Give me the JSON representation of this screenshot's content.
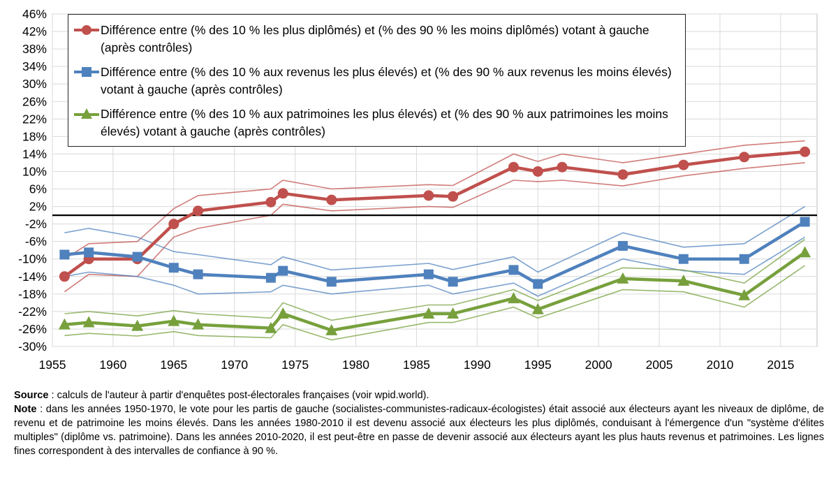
{
  "chart_data": {
    "type": "line",
    "y_ticks": [
      "46%",
      "42%",
      "38%",
      "34%",
      "30%",
      "26%",
      "22%",
      "18%",
      "14%",
      "10%",
      "6%",
      "2%",
      "-2%",
      "-6%",
      "-10%",
      "-14%",
      "-18%",
      "-22%",
      "-26%",
      "-30%"
    ],
    "x_ticks": [
      "1955",
      "1960",
      "1965",
      "1970",
      "1975",
      "1980",
      "1985",
      "1990",
      "1995",
      "2000",
      "2005",
      "2010",
      "2015"
    ],
    "xlim": [
      1955,
      2018
    ],
    "ylim": [
      -30,
      46
    ],
    "grid": true,
    "reference_line": 0,
    "legend_position": "top-left",
    "series": [
      {
        "name": "Différence entre (% des 10 % les plus diplômés) et (% des 90 % les moins diplômés) votant à gauche (après contrôles)",
        "color": "#c0504d",
        "marker": "circle",
        "x": [
          1956,
          1958,
          1962,
          1965,
          1967,
          1973,
          1974,
          1978,
          1986,
          1988,
          1993,
          1995,
          1997,
          2002,
          2007,
          2012,
          2017
        ],
        "values": [
          -14,
          -10,
          -10,
          -2,
          1,
          3,
          5,
          3.5,
          4.5,
          4.3,
          11,
          10,
          11,
          9.3,
          11.5,
          13.3,
          14.5
        ],
        "upper": [
          -10,
          -6.5,
          -6,
          1.5,
          4.5,
          6,
          8,
          6,
          7,
          6.8,
          14,
          12.3,
          14,
          12,
          14,
          16,
          17
        ],
        "lower": [
          -17.5,
          -13.5,
          -14,
          -5,
          -3,
          0,
          2.5,
          1,
          2,
          1.8,
          8,
          7.7,
          8,
          6.7,
          9,
          10.7,
          12
        ]
      },
      {
        "name": "Différence entre (% des 10 % aux revenus les plus élevés) et (% des 90 % aux revenus les moins élevés) votant à gauche (après contrôles)",
        "color": "#4f81bd",
        "marker": "square",
        "x": [
          1956,
          1958,
          1962,
          1965,
          1967,
          1973,
          1974,
          1978,
          1986,
          1988,
          1993,
          1995,
          2002,
          2007,
          2012,
          2017
        ],
        "values": [
          -9,
          -8.5,
          -9.5,
          -12,
          -13.5,
          -14.3,
          -12.7,
          -15.2,
          -13.5,
          -15.2,
          -12.5,
          -15.7,
          -7,
          -10,
          -10,
          -1.5
        ],
        "upper": [
          -4,
          -3,
          -5,
          -8.3,
          -9,
          -11.3,
          -9.5,
          -12.5,
          -11,
          -12.4,
          -9.5,
          -13,
          -4,
          -7.3,
          -6.5,
          2
        ],
        "lower": [
          -14,
          -13,
          -14,
          -16,
          -18,
          -17.5,
          -16,
          -18,
          -16,
          -18,
          -15.5,
          -18.5,
          -10,
          -12.7,
          -13.5,
          -5
        ]
      },
      {
        "name": "Différence entre (% des 10 % aux patrimoines les plus élevés) et (% des 90 % aux patrimoines les moins élevés) votant à gauche (après contrôles)",
        "color": "#77a03c",
        "marker": "triangle",
        "x": [
          1956,
          1958,
          1962,
          1965,
          1967,
          1973,
          1974,
          1978,
          1986,
          1988,
          1993,
          1995,
          2002,
          2007,
          2012,
          2017
        ],
        "values": [
          -25,
          -24.5,
          -25.3,
          -24.2,
          -25,
          -25.8,
          -22.5,
          -26.3,
          -22.5,
          -22.5,
          -19,
          -21.5,
          -14.5,
          -15,
          -18.3,
          -8.5
        ],
        "upper": [
          -22.5,
          -22,
          -23,
          -21.8,
          -22.5,
          -23.5,
          -20,
          -24,
          -20.5,
          -20.5,
          -17,
          -19.5,
          -12,
          -12.5,
          -15.5,
          -5.5
        ],
        "lower": [
          -27.5,
          -27,
          -27.6,
          -26.6,
          -27.5,
          -28,
          -25,
          -28.5,
          -24.5,
          -24.5,
          -21,
          -23.5,
          -17,
          -17.5,
          -21,
          -11.5
        ]
      }
    ]
  },
  "notes": {
    "source_label": "Source",
    "source_text": " : calculs de l'auteur à partir d'enquêtes post-électorales françaises (voir wpid.world).",
    "note_label": "Note",
    "note_text": " : dans les années 1950-1970, le vote pour les partis de gauche (socialistes-communistes-radicaux-écologistes) était associé aux électeurs ayant les niveaux de diplôme, de revenu et de patrimoine les moins élevés. Dans les années 1980-2010 il est devenu associé aux électeurs les plus diplômés, conduisant à l'émergence d'un \"système d'élites multiples\" (diplôme vs. patrimoine). Dans les années 2010-2020, il est peut-être en passe de devenir associé aux électeurs ayant les plus hauts revenus et patrimoines. Les lignes fines correspondent à des intervalles de confiance à 90 %."
  }
}
